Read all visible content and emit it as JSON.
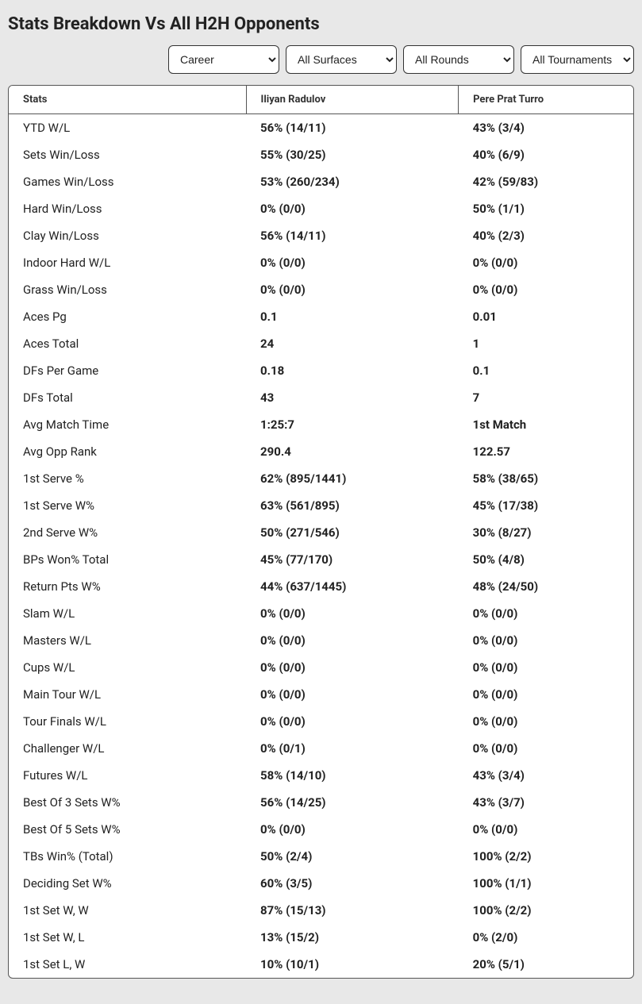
{
  "title": "Stats Breakdown Vs All H2H Opponents",
  "filters": {
    "period": {
      "selected": "Career",
      "options": [
        "Career"
      ]
    },
    "surface": {
      "selected": "All Surfaces",
      "options": [
        "All Surfaces"
      ]
    },
    "round": {
      "selected": "All Rounds",
      "options": [
        "All Rounds"
      ]
    },
    "tournament": {
      "selected": "All Tournaments",
      "options": [
        "All Tournaments"
      ]
    }
  },
  "table": {
    "columns": [
      "Stats",
      "Iliyan Radulov",
      "Pere Prat Turro"
    ],
    "rows": [
      {
        "stat": "YTD W/L",
        "p1": "56% (14/11)",
        "p2": "43% (3/4)"
      },
      {
        "stat": "Sets Win/Loss",
        "p1": "55% (30/25)",
        "p2": "40% (6/9)"
      },
      {
        "stat": "Games Win/Loss",
        "p1": "53% (260/234)",
        "p2": "42% (59/83)"
      },
      {
        "stat": "Hard Win/Loss",
        "p1": "0% (0/0)",
        "p2": "50% (1/1)"
      },
      {
        "stat": "Clay Win/Loss",
        "p1": "56% (14/11)",
        "p2": "40% (2/3)"
      },
      {
        "stat": "Indoor Hard W/L",
        "p1": "0% (0/0)",
        "p2": "0% (0/0)"
      },
      {
        "stat": "Grass Win/Loss",
        "p1": "0% (0/0)",
        "p2": "0% (0/0)"
      },
      {
        "stat": "Aces Pg",
        "p1": "0.1",
        "p2": "0.01"
      },
      {
        "stat": "Aces Total",
        "p1": "24",
        "p2": "1"
      },
      {
        "stat": "DFs Per Game",
        "p1": "0.18",
        "p2": "0.1"
      },
      {
        "stat": "DFs Total",
        "p1": "43",
        "p2": "7"
      },
      {
        "stat": "Avg Match Time",
        "p1": "1:25:7",
        "p2": "1st Match"
      },
      {
        "stat": "Avg Opp Rank",
        "p1": "290.4",
        "p2": "122.57"
      },
      {
        "stat": "1st Serve %",
        "p1": "62% (895/1441)",
        "p2": "58% (38/65)"
      },
      {
        "stat": "1st Serve W%",
        "p1": "63% (561/895)",
        "p2": "45% (17/38)"
      },
      {
        "stat": "2nd Serve W%",
        "p1": "50% (271/546)",
        "p2": "30% (8/27)"
      },
      {
        "stat": "BPs Won% Total",
        "p1": "45% (77/170)",
        "p2": "50% (4/8)"
      },
      {
        "stat": "Return Pts W%",
        "p1": "44% (637/1445)",
        "p2": "48% (24/50)"
      },
      {
        "stat": "Slam W/L",
        "p1": "0% (0/0)",
        "p2": "0% (0/0)"
      },
      {
        "stat": "Masters W/L",
        "p1": "0% (0/0)",
        "p2": "0% (0/0)"
      },
      {
        "stat": "Cups W/L",
        "p1": "0% (0/0)",
        "p2": "0% (0/0)"
      },
      {
        "stat": "Main Tour W/L",
        "p1": "0% (0/0)",
        "p2": "0% (0/0)"
      },
      {
        "stat": "Tour Finals W/L",
        "p1": "0% (0/0)",
        "p2": "0% (0/0)"
      },
      {
        "stat": "Challenger W/L",
        "p1": "0% (0/1)",
        "p2": "0% (0/0)"
      },
      {
        "stat": "Futures W/L",
        "p1": "58% (14/10)",
        "p2": "43% (3/4)"
      },
      {
        "stat": "Best Of 3 Sets W%",
        "p1": "56% (14/25)",
        "p2": "43% (3/7)"
      },
      {
        "stat": "Best Of 5 Sets W%",
        "p1": "0% (0/0)",
        "p2": "0% (0/0)"
      },
      {
        "stat": "TBs Win% (Total)",
        "p1": "50% (2/4)",
        "p2": "100% (2/2)"
      },
      {
        "stat": "Deciding Set W%",
        "p1": "60% (3/5)",
        "p2": "100% (1/1)"
      },
      {
        "stat": "1st Set W, W",
        "p1": "87% (15/13)",
        "p2": "100% (2/2)"
      },
      {
        "stat": "1st Set W, L",
        "p1": "13% (15/2)",
        "p2": "0% (2/0)"
      },
      {
        "stat": "1st Set L, W",
        "p1": "10% (10/1)",
        "p2": "20% (5/1)"
      }
    ]
  }
}
